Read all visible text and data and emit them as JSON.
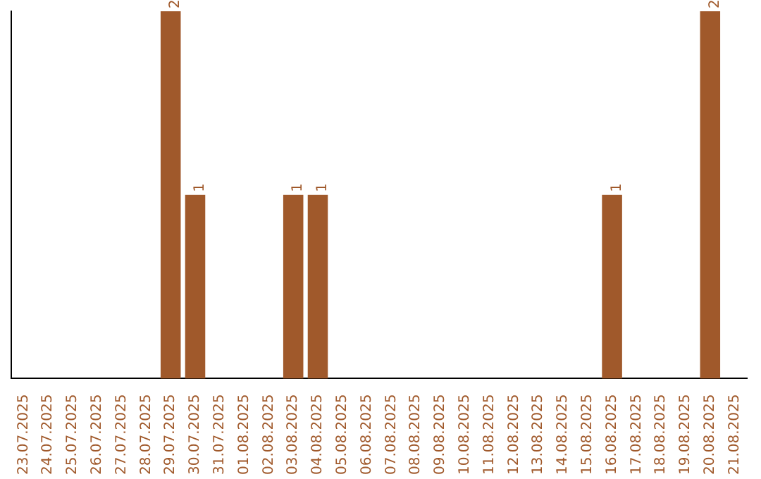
{
  "chart_data": {
    "type": "bar",
    "categories": [
      "23.07.2025",
      "24.07.2025",
      "25.07.2025",
      "26.07.2025",
      "27.07.2025",
      "28.07.2025",
      "29.07.2025",
      "30.07.2025",
      "31.07.2025",
      "01.08.2025",
      "02.08.2025",
      "03.08.2025",
      "04.08.2025",
      "05.08.2025",
      "06.08.2025",
      "07.08.2025",
      "08.08.2025",
      "09.08.2025",
      "10.08.2025",
      "11.08.2025",
      "12.08.2025",
      "13.08.2025",
      "14.08.2025",
      "15.08.2025",
      "16.08.2025",
      "17.08.2025",
      "18.08.2025",
      "19.08.2025",
      "20.08.2025",
      "21.08.2025"
    ],
    "values": [
      0,
      0,
      0,
      0,
      0,
      0,
      2,
      1,
      0,
      0,
      0,
      1,
      1,
      0,
      0,
      0,
      0,
      0,
      0,
      0,
      0,
      0,
      0,
      0,
      1,
      0,
      0,
      0,
      2,
      0
    ],
    "value_labels": [
      null,
      null,
      null,
      null,
      null,
      null,
      "2",
      "1",
      null,
      null,
      null,
      "1",
      "1",
      null,
      null,
      null,
      null,
      null,
      null,
      null,
      null,
      null,
      null,
      null,
      "1",
      null,
      null,
      null,
      "2",
      null
    ],
    "color": "#a0592b",
    "tick_labels": "x",
    "grid": false,
    "legend": false
  }
}
